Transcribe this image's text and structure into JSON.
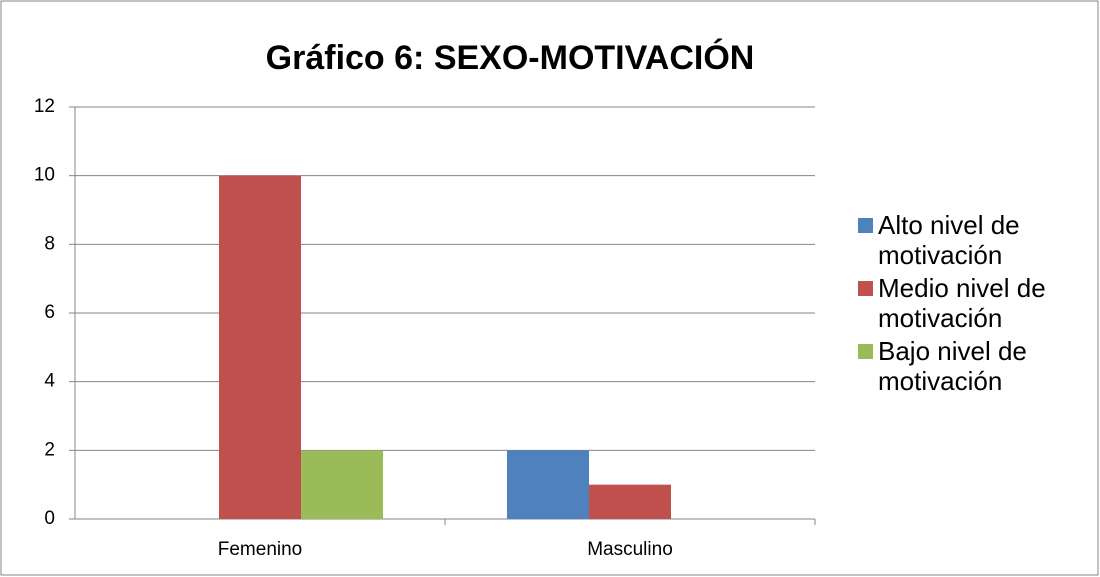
{
  "chart_data": {
    "type": "bar",
    "title": "Gráfico 6: SEXO-MOTIVACIÓN",
    "categories": [
      "Femenino",
      "Masculino"
    ],
    "series": [
      {
        "name": "Alto nivel de motivación",
        "color": "#4f81bd",
        "values": [
          0,
          2
        ]
      },
      {
        "name": "Medio nivel de motivación",
        "color": "#c0504d",
        "values": [
          10,
          1
        ]
      },
      {
        "name": "Bajo nivel de motivación",
        "color": "#9bbb59",
        "values": [
          2,
          0
        ]
      }
    ],
    "ylim": [
      0,
      12
    ],
    "yticks": [
      0,
      2,
      4,
      6,
      8,
      10,
      12
    ],
    "grid": true,
    "legend": "right"
  }
}
